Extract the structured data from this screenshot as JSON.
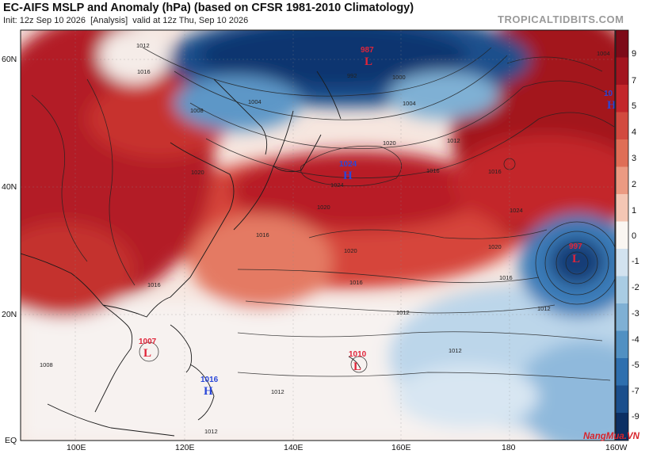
{
  "header": {
    "title": "EC-AIFS MSLP and Anomaly (hPa) (based on CFSR 1981-2010 Climatology)",
    "init_label": "Init: 12z Sep 10 2026",
    "run_label": "[Analysis]",
    "valid_label": "valid at 12z Thu, Sep 10 2026",
    "brand": "TROPICALTIDBITS.COM"
  },
  "map": {
    "lat_labels": [
      "60N",
      "40N",
      "20N",
      "EQ"
    ],
    "lon_labels": [
      "100E",
      "120E",
      "140E",
      "160E",
      "180",
      "160W"
    ],
    "isobar_labels": [
      "1012",
      "1016",
      "1008",
      "1004",
      "992",
      "1004",
      "1000",
      "1012",
      "1016",
      "1020",
      "1024",
      "1020",
      "1016",
      "1020",
      "1020",
      "1016",
      "1016",
      "1012",
      "1016",
      "1020",
      "1024",
      "1016",
      "1012",
      "1008",
      "1012",
      "1012",
      "1012",
      "1004"
    ],
    "pressure_centers": [
      {
        "type": "L",
        "value": "987",
        "color": "#e0253a"
      },
      {
        "type": "H",
        "value": "1024",
        "color": "#2a47d9"
      },
      {
        "type": "H",
        "value": "10",
        "color": "#2a47d9"
      },
      {
        "type": "L",
        "value": "997",
        "color": "#e0253a"
      },
      {
        "type": "L",
        "value": "1007",
        "color": "#e0253a"
      },
      {
        "type": "L",
        "value": "1010",
        "color": "#e0253a"
      },
      {
        "type": "H",
        "value": "1016",
        "color": "#2a47d9"
      }
    ]
  },
  "colorbar": {
    "labels": [
      "9",
      "7",
      "5",
      "4",
      "3",
      "2",
      "1",
      "0",
      "-1",
      "-2",
      "-3",
      "-4",
      "-5",
      "-7",
      "-9"
    ],
    "colors": [
      "#7d0a18",
      "#a3141f",
      "#c3262b",
      "#d24a3f",
      "#df6e56",
      "#eb9a82",
      "#f4c6b4",
      "#faf6f2",
      "#d2e2ef",
      "#a9cce3",
      "#7fb0d4",
      "#5190c2",
      "#2e6fae",
      "#1b4f8c",
      "#0c2f63"
    ]
  },
  "watermark": "NangMua.VN"
}
